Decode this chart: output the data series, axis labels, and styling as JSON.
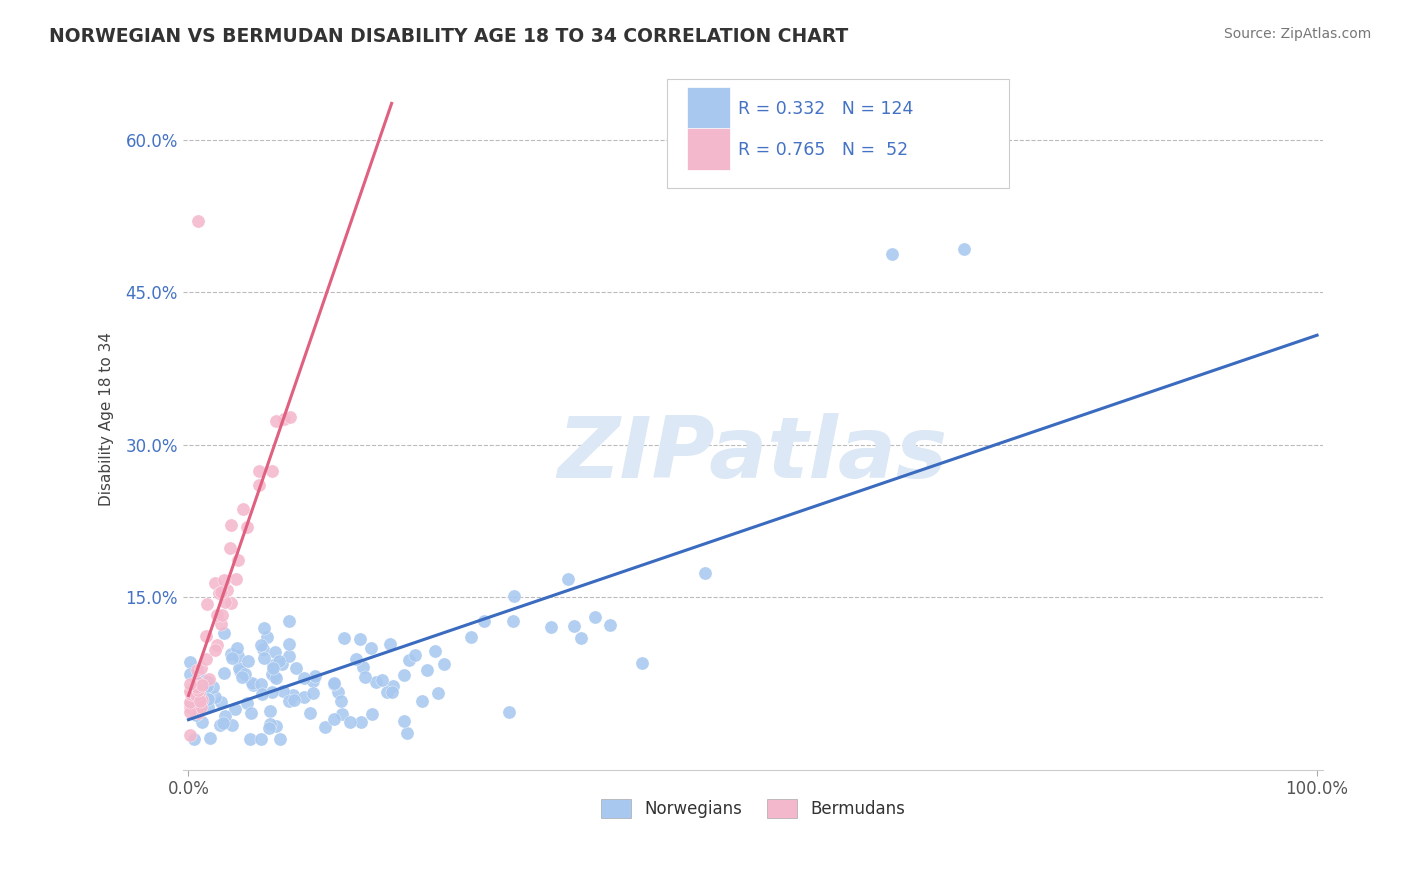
{
  "title": "NORWEGIAN VS BERMUDAN DISABILITY AGE 18 TO 34 CORRELATION CHART",
  "source": "Source: ZipAtlas.com",
  "ylabel": "Disability Age 18 to 34",
  "xlim": [
    0,
    1.0
  ],
  "ylim": [
    0.0,
    0.65
  ],
  "xticks": [
    0.0,
    1.0
  ],
  "xtick_labels": [
    "0.0%",
    "100.0%"
  ],
  "ytick_labels": [
    "15.0%",
    "30.0%",
    "45.0%",
    "60.0%"
  ],
  "yticks": [
    0.15,
    0.3,
    0.45,
    0.6
  ],
  "norwegian_color": "#a8c8f0",
  "norwegian_line_color": "#3a6bbf",
  "bermudan_color": "#f4b8cc",
  "bermudan_line_color": "#e06080",
  "R_norwegian": 0.332,
  "N_norwegian": 124,
  "R_bermudan": 0.765,
  "N_bermudan": 52,
  "legend_label_1": "Norwegians",
  "legend_label_2": "Bermudans",
  "background_color": "#ffffff",
  "grid_color": "#bbbbbb",
  "text_color": "#4472c4",
  "title_color": "#333333",
  "watermark_color": "#dce8f5"
}
